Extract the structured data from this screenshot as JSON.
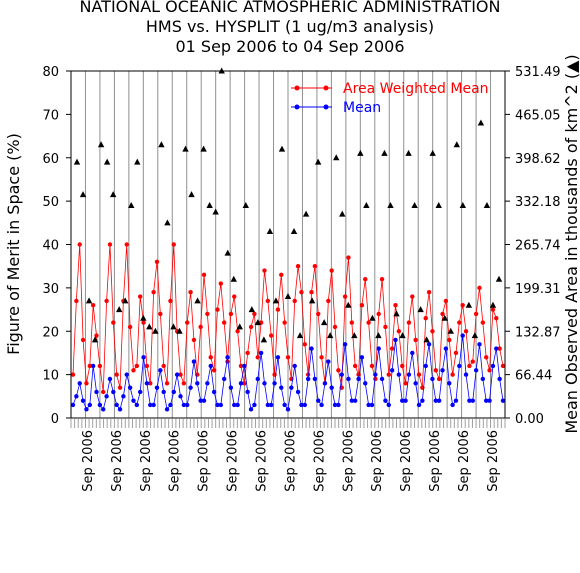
{
  "header": {
    "line1": "NATIONAL OCEANIC ATMOSPHERIC ADMINISTRATION",
    "line2": "HMS vs. HYSPLIT (1 ug/m3 analysis)",
    "line3": "01 Sep 2006 to 04 Sep 2006"
  },
  "chart_data": {
    "type": "line",
    "title": "NATIONAL OCEANIC ATMOSPHERIC ADMINISTRATION HMS vs. HYSPLIT (1 ug/m3 analysis) 01 Sep 2006 to 04 Sep 2006",
    "ylabel": "Figure of Merit in Space (%)",
    "y2label": "Mean Observed Area in thousands of km^2 (▲)",
    "ylim": [
      0,
      80
    ],
    "y2lim": [
      0,
      531.49
    ],
    "yticks": [
      "0",
      "10",
      "20",
      "30",
      "40",
      "50",
      "60",
      "70",
      "80"
    ],
    "y2ticks": [
      "0.00",
      "66.44",
      "132.87",
      "199.31",
      "265.74",
      "332.18",
      "398.62",
      "465.05",
      "531.49"
    ],
    "xtick_label": "Sep 2006",
    "xtick_count": 15,
    "legend_position": "top-right",
    "grid": "vertical lines only",
    "colors": {
      "area_weighted_mean": "#ff0000",
      "mean": "#0000ff",
      "observed_area": "#000000"
    },
    "series": [
      {
        "name": "Area Weighted Mean",
        "color": "#ff0000",
        "values": [
          10,
          27,
          40,
          18,
          8,
          12,
          26,
          19,
          12,
          6,
          27,
          40,
          22,
          10,
          7,
          27,
          40,
          21,
          11,
          12,
          28,
          22,
          12,
          8,
          29,
          36,
          24,
          12,
          8,
          27,
          40,
          20,
          10,
          8,
          22,
          29,
          18,
          10,
          21,
          33,
          24,
          14,
          11,
          25,
          31,
          22,
          13,
          24,
          28,
          20,
          12,
          8,
          15,
          21,
          24,
          14,
          22,
          34,
          27,
          19,
          10,
          25,
          33,
          22,
          14,
          9,
          27,
          35,
          29,
          17,
          10,
          29,
          35,
          24,
          14,
          8,
          27,
          34,
          21,
          11,
          7,
          28,
          37,
          22,
          12,
          10,
          26,
          32,
          22,
          12,
          9,
          24,
          32,
          21,
          10,
          16,
          26,
          20,
          12,
          8,
          22,
          28,
          18,
          10,
          7,
          23,
          29,
          20,
          11,
          9,
          24,
          27,
          18,
          10,
          15,
          22,
          26,
          20,
          12,
          13,
          24,
          30,
          22,
          14,
          11,
          25,
          23,
          16,
          12
        ]
      },
      {
        "name": "Mean",
        "color": "#0000ff",
        "values": [
          3,
          5,
          8,
          4,
          2,
          3,
          12,
          6,
          3,
          2,
          5,
          9,
          6,
          3,
          2,
          5,
          10,
          7,
          4,
          3,
          6,
          14,
          8,
          3,
          3,
          7,
          11,
          6,
          2,
          3,
          6,
          10,
          5,
          3,
          3,
          7,
          13,
          8,
          4,
          4,
          8,
          12,
          6,
          3,
          3,
          9,
          14,
          7,
          3,
          3,
          8,
          12,
          6,
          2,
          3,
          9,
          15,
          8,
          3,
          3,
          8,
          14,
          7,
          3,
          2,
          7,
          12,
          6,
          3,
          3,
          9,
          16,
          9,
          4,
          3,
          8,
          13,
          7,
          3,
          3,
          10,
          17,
          9,
          4,
          4,
          9,
          14,
          8,
          3,
          3,
          10,
          16,
          9,
          4,
          3,
          11,
          18,
          10,
          4,
          4,
          10,
          15,
          8,
          3,
          4,
          12,
          17,
          9,
          4,
          4,
          11,
          16,
          8,
          3,
          4,
          12,
          19,
          10,
          4,
          4,
          11,
          17,
          9,
          4,
          4,
          12,
          16,
          9,
          4
        ]
      },
      {
        "name": "Mean Observed Area",
        "color": "#000000",
        "marker": "triangle",
        "values": [
          59,
          51.5,
          27,
          18,
          63,
          59,
          51.5,
          25,
          27,
          49,
          59,
          23,
          21,
          20,
          63,
          45,
          21,
          20,
          62,
          51.5,
          27,
          62,
          49,
          47.5,
          80,
          38,
          32,
          21,
          49,
          25,
          22,
          18,
          43,
          27,
          62,
          28,
          43,
          19,
          47,
          27,
          59,
          22,
          19,
          60,
          47,
          26,
          19,
          61,
          49,
          23,
          19,
          61,
          49,
          24,
          19,
          61,
          49,
          25,
          18,
          61,
          49,
          23,
          20,
          63,
          49,
          26,
          19,
          68,
          49,
          26,
          32
        ]
      }
    ],
    "observed_area_units": "thousands of km^2"
  }
}
